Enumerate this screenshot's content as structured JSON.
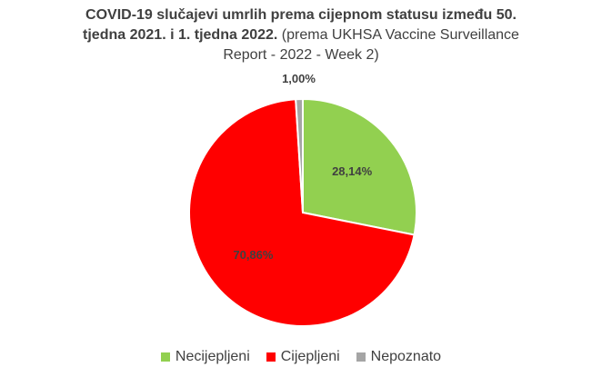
{
  "chart_data": {
    "type": "pie",
    "title_bold_line1": "COVID-19 slučajevi umrlih prema cijepnom statusu između 50.",
    "title_bold_line2": "tjedna 2021. i 1. tjedna 2022.",
    "title_normal_line2": " (prema UKHSA Vaccine Surveillance",
    "title_normal_line3": "Report - 2022 - Week 2)",
    "slices": [
      {
        "name": "Necijepljeni",
        "value": 28.14,
        "label": "28,14%",
        "color": "#92D050"
      },
      {
        "name": "Cijepljeni",
        "value": 70.86,
        "label": "70,86%",
        "color": "#FF0000"
      },
      {
        "name": "Nepoznato",
        "value": 1.0,
        "label": "1,00%",
        "color": "#A5A5A5"
      }
    ],
    "legend_position": "bottom"
  }
}
